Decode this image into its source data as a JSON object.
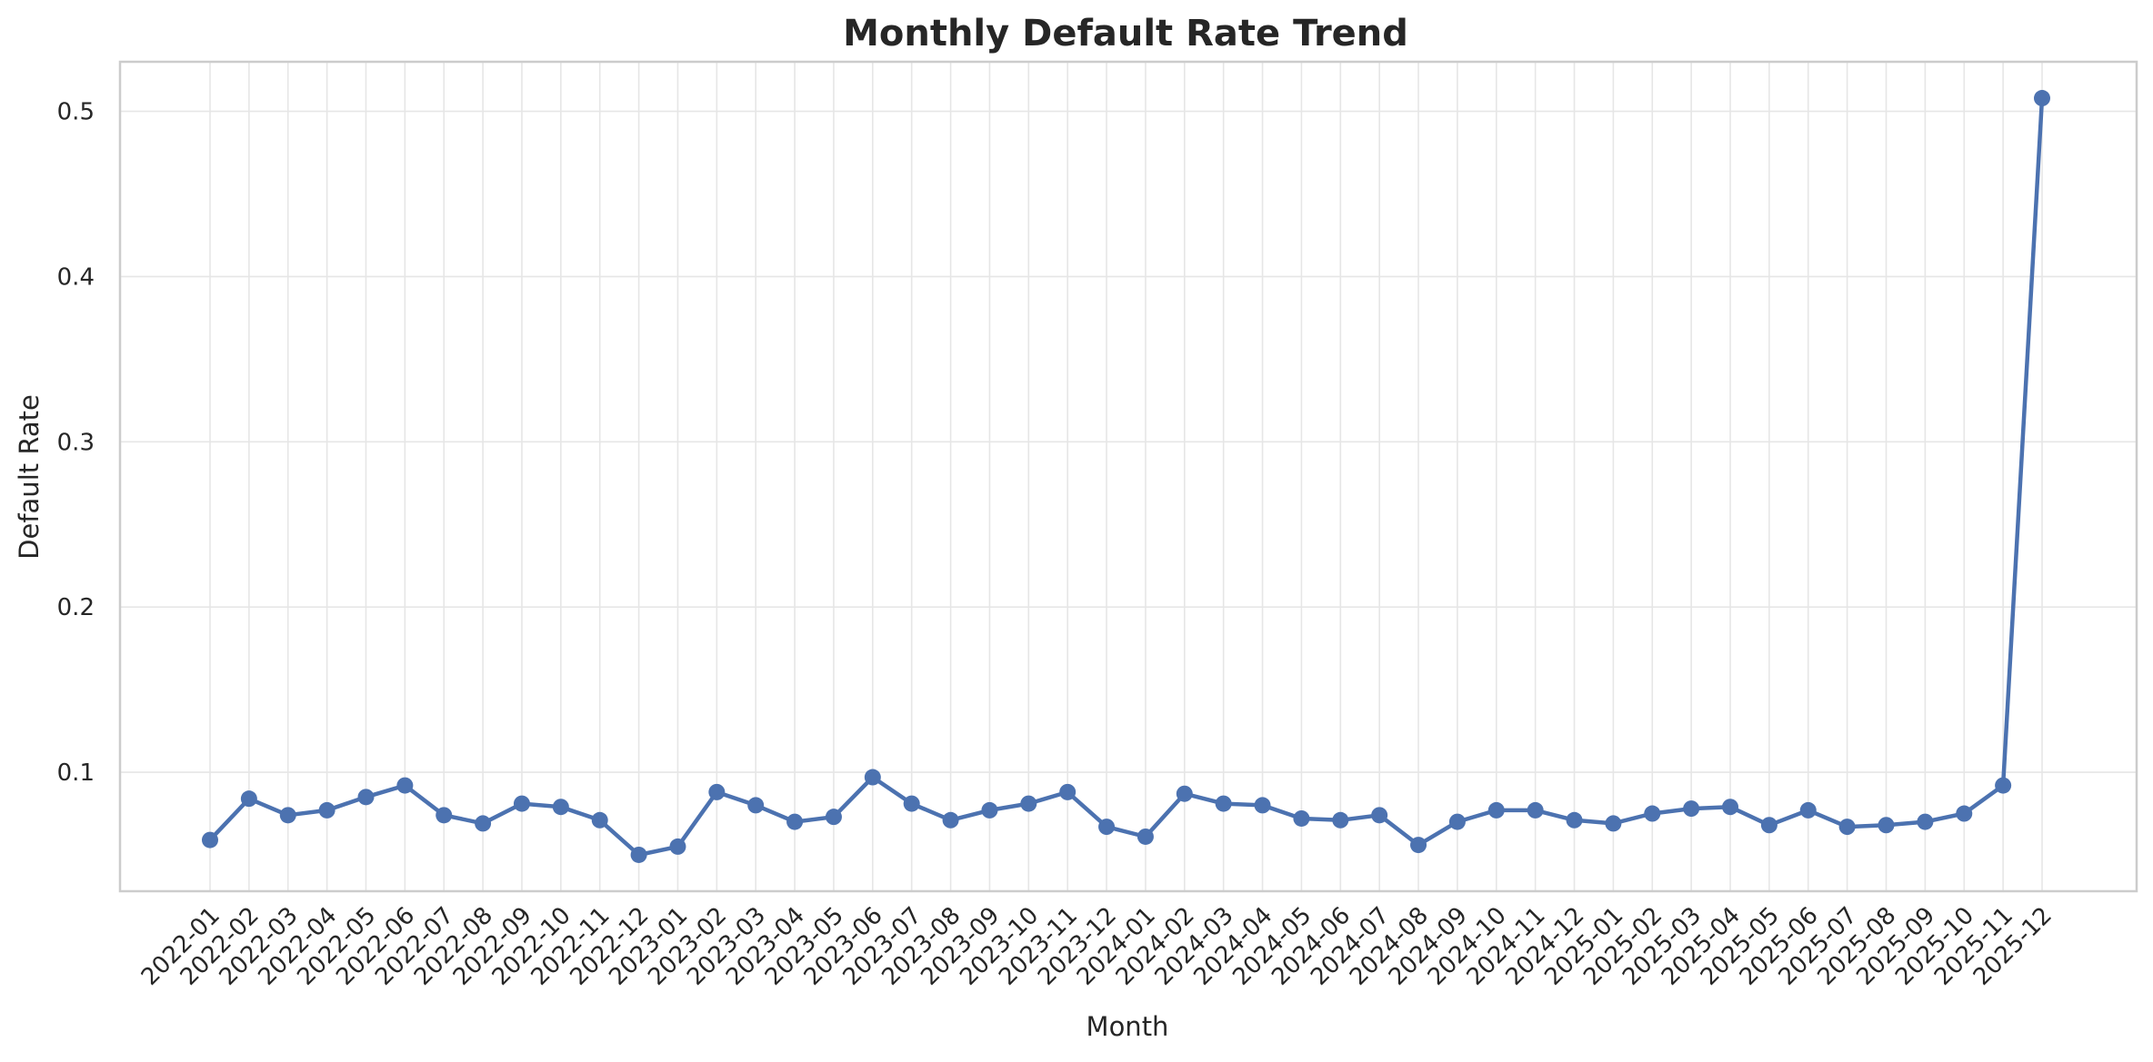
{
  "chart_data": {
    "type": "line",
    "title": "Monthly Default Rate Trend",
    "xlabel": "Month",
    "ylabel": "Default Rate",
    "ylim": [
      0.028,
      0.53
    ],
    "yticks": [
      0.1,
      0.2,
      0.3,
      0.4,
      0.5
    ],
    "ytick_labels": [
      "0.1",
      "0.2",
      "0.3",
      "0.4",
      "0.5"
    ],
    "grid": true,
    "categories": [
      "2022-01",
      "2022-02",
      "2022-03",
      "2022-04",
      "2022-05",
      "2022-06",
      "2022-07",
      "2022-08",
      "2022-09",
      "2022-10",
      "2022-11",
      "2022-12",
      "2023-01",
      "2023-02",
      "2023-03",
      "2023-04",
      "2023-05",
      "2023-06",
      "2023-07",
      "2023-08",
      "2023-09",
      "2023-10",
      "2023-11",
      "2023-12",
      "2024-01",
      "2024-02",
      "2024-03",
      "2024-04",
      "2024-05",
      "2024-06",
      "2024-07",
      "2024-08",
      "2024-09",
      "2024-10",
      "2024-11",
      "2024-12",
      "2025-01",
      "2025-02",
      "2025-03",
      "2025-04",
      "2025-05",
      "2025-06",
      "2025-07",
      "2025-08",
      "2025-09",
      "2025-10",
      "2025-11",
      "2025-12"
    ],
    "series": [
      {
        "name": "Default Rate",
        "color": "#4c72b0",
        "values": [
          0.059,
          0.084,
          0.074,
          0.077,
          0.085,
          0.092,
          0.074,
          0.069,
          0.081,
          0.079,
          0.071,
          0.05,
          0.055,
          0.088,
          0.08,
          0.07,
          0.073,
          0.097,
          0.081,
          0.071,
          0.077,
          0.081,
          0.088,
          0.067,
          0.061,
          0.087,
          0.081,
          0.08,
          0.072,
          0.071,
          0.074,
          0.056,
          0.07,
          0.077,
          0.077,
          0.071,
          0.069,
          0.075,
          0.078,
          0.079,
          0.068,
          0.077,
          0.067,
          0.068,
          0.07,
          0.075,
          0.092,
          0.508
        ]
      }
    ]
  }
}
